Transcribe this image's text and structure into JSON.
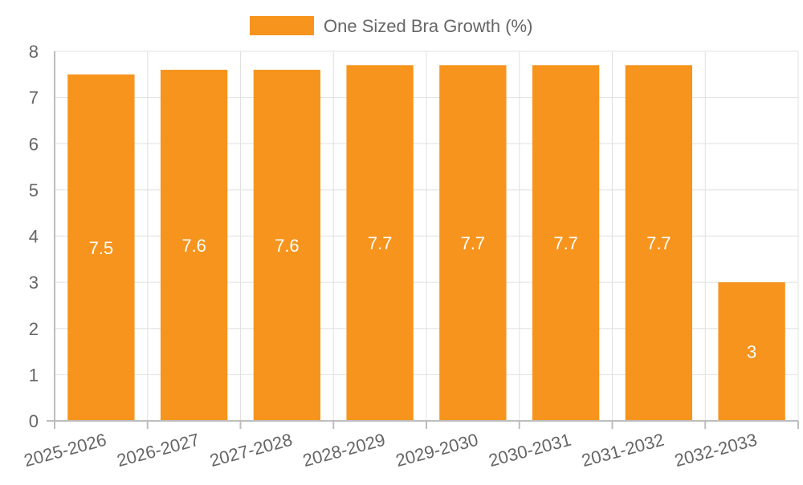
{
  "chart_data": {
    "type": "bar",
    "categories": [
      "2025-2026",
      "2026-2027",
      "2027-2028",
      "2028-2029",
      "2029-2030",
      "2030-2031",
      "2031-2032",
      "2032-2033"
    ],
    "series": [
      {
        "name": "One Sized Bra Growth (%)",
        "values": [
          7.5,
          7.6,
          7.6,
          7.7,
          7.7,
          7.7,
          7.7,
          3
        ],
        "color": "#f7941d"
      }
    ],
    "data_labels": [
      "7.5",
      "7.6",
      "7.6",
      "7.7",
      "7.7",
      "7.7",
      "7.7",
      "3"
    ],
    "y_ticks": [
      "0",
      "1",
      "2",
      "3",
      "4",
      "5",
      "6",
      "7",
      "8"
    ],
    "ylim": [
      0,
      8
    ],
    "grid": true,
    "legend_position": "top-center"
  }
}
